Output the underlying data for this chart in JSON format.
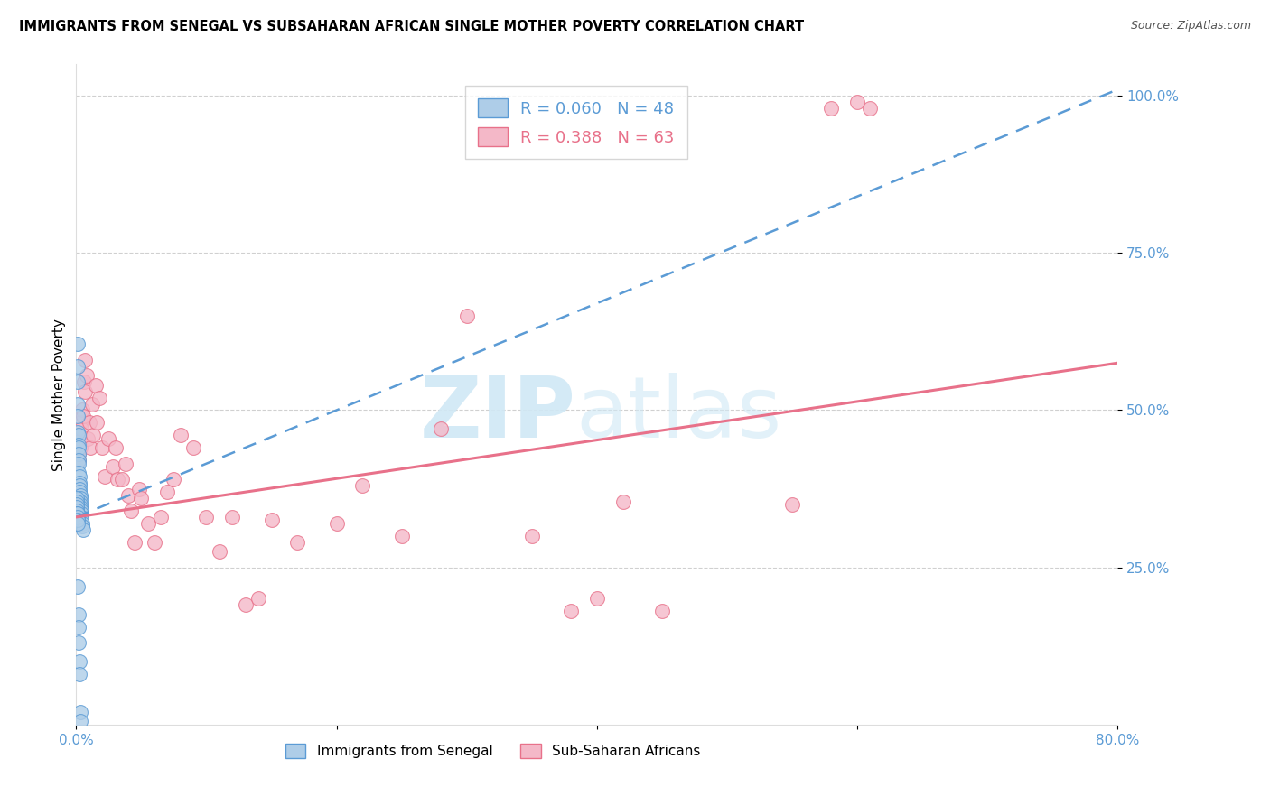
{
  "title": "IMMIGRANTS FROM SENEGAL VS SUBSAHARAN AFRICAN SINGLE MOTHER POVERTY CORRELATION CHART",
  "source": "Source: ZipAtlas.com",
  "ylabel": "Single Mother Poverty",
  "xlim": [
    0.0,
    0.8
  ],
  "ylim": [
    0.0,
    1.05
  ],
  "xtick_positions": [
    0.0,
    0.2,
    0.4,
    0.6,
    0.8
  ],
  "xtick_labels": [
    "0.0%",
    "",
    "",
    "",
    "80.0%"
  ],
  "ytick_values": [
    0.25,
    0.5,
    0.75,
    1.0
  ],
  "ytick_labels": [
    "25.0%",
    "50.0%",
    "75.0%",
    "100.0%"
  ],
  "blue_R": 0.06,
  "blue_N": 48,
  "pink_R": 0.388,
  "pink_N": 63,
  "blue_label": "Immigrants from Senegal",
  "pink_label": "Sub-Saharan Africans",
  "blue_color": "#aecde8",
  "blue_edge": "#5b9bd5",
  "pink_color": "#f4b8c8",
  "pink_edge": "#e8718a",
  "blue_line_color": "#5b9bd5",
  "pink_line_color": "#e8718a",
  "watermark_color": "#d0e8f5",
  "background": "#ffffff",
  "axis_tick_color": "#5b9bd5",
  "grid_color": "#d0d0d0",
  "blue_line_x0": 0.0,
  "blue_line_y0": 0.33,
  "blue_line_x1": 0.8,
  "blue_line_y1": 1.01,
  "pink_line_x0": 0.0,
  "pink_line_y0": 0.33,
  "pink_line_x1": 0.8,
  "pink_line_y1": 0.575,
  "senegal_x": [
    0.0008,
    0.001,
    0.001,
    0.001,
    0.0012,
    0.0012,
    0.0015,
    0.0015,
    0.0018,
    0.0018,
    0.002,
    0.002,
    0.002,
    0.0022,
    0.0022,
    0.0025,
    0.0025,
    0.0028,
    0.003,
    0.003,
    0.0032,
    0.0035,
    0.0035,
    0.0038,
    0.004,
    0.004,
    0.0042,
    0.0045,
    0.0048,
    0.005,
    0.0005,
    0.0005,
    0.0006,
    0.0006,
    0.0007,
    0.0007,
    0.0008,
    0.0009,
    0.001,
    0.001,
    0.0012,
    0.0015,
    0.0018,
    0.002,
    0.0022,
    0.0025,
    0.003,
    0.0035
  ],
  "senegal_y": [
    0.605,
    0.57,
    0.545,
    0.51,
    0.49,
    0.465,
    0.46,
    0.445,
    0.44,
    0.43,
    0.42,
    0.415,
    0.4,
    0.395,
    0.385,
    0.38,
    0.375,
    0.37,
    0.365,
    0.36,
    0.355,
    0.35,
    0.345,
    0.34,
    0.335,
    0.33,
    0.325,
    0.32,
    0.315,
    0.31,
    0.36,
    0.355,
    0.35,
    0.345,
    0.34,
    0.335,
    0.335,
    0.33,
    0.325,
    0.32,
    0.22,
    0.175,
    0.155,
    0.13,
    0.1,
    0.08,
    0.02,
    0.005
  ],
  "subsaharan_x": [
    0.0008,
    0.001,
    0.0015,
    0.002,
    0.0025,
    0.003,
    0.0035,
    0.004,
    0.0045,
    0.005,
    0.006,
    0.0065,
    0.007,
    0.008,
    0.009,
    0.01,
    0.011,
    0.012,
    0.013,
    0.015,
    0.016,
    0.018,
    0.02,
    0.022,
    0.025,
    0.028,
    0.03,
    0.032,
    0.035,
    0.038,
    0.04,
    0.042,
    0.045,
    0.048,
    0.05,
    0.055,
    0.06,
    0.065,
    0.07,
    0.075,
    0.08,
    0.09,
    0.1,
    0.11,
    0.12,
    0.13,
    0.14,
    0.15,
    0.17,
    0.2,
    0.22,
    0.25,
    0.28,
    0.3,
    0.35,
    0.38,
    0.4,
    0.42,
    0.45,
    0.55,
    0.58,
    0.6,
    0.61
  ],
  "subsaharan_y": [
    0.38,
    0.35,
    0.42,
    0.43,
    0.45,
    0.44,
    0.48,
    0.47,
    0.5,
    0.49,
    0.545,
    0.53,
    0.58,
    0.555,
    0.455,
    0.48,
    0.44,
    0.51,
    0.46,
    0.54,
    0.48,
    0.52,
    0.44,
    0.395,
    0.455,
    0.41,
    0.44,
    0.39,
    0.39,
    0.415,
    0.365,
    0.34,
    0.29,
    0.375,
    0.36,
    0.32,
    0.29,
    0.33,
    0.37,
    0.39,
    0.46,
    0.44,
    0.33,
    0.275,
    0.33,
    0.19,
    0.2,
    0.325,
    0.29,
    0.32,
    0.38,
    0.3,
    0.47,
    0.65,
    0.3,
    0.18,
    0.2,
    0.355,
    0.18,
    0.35,
    0.98,
    0.99,
    0.98
  ]
}
